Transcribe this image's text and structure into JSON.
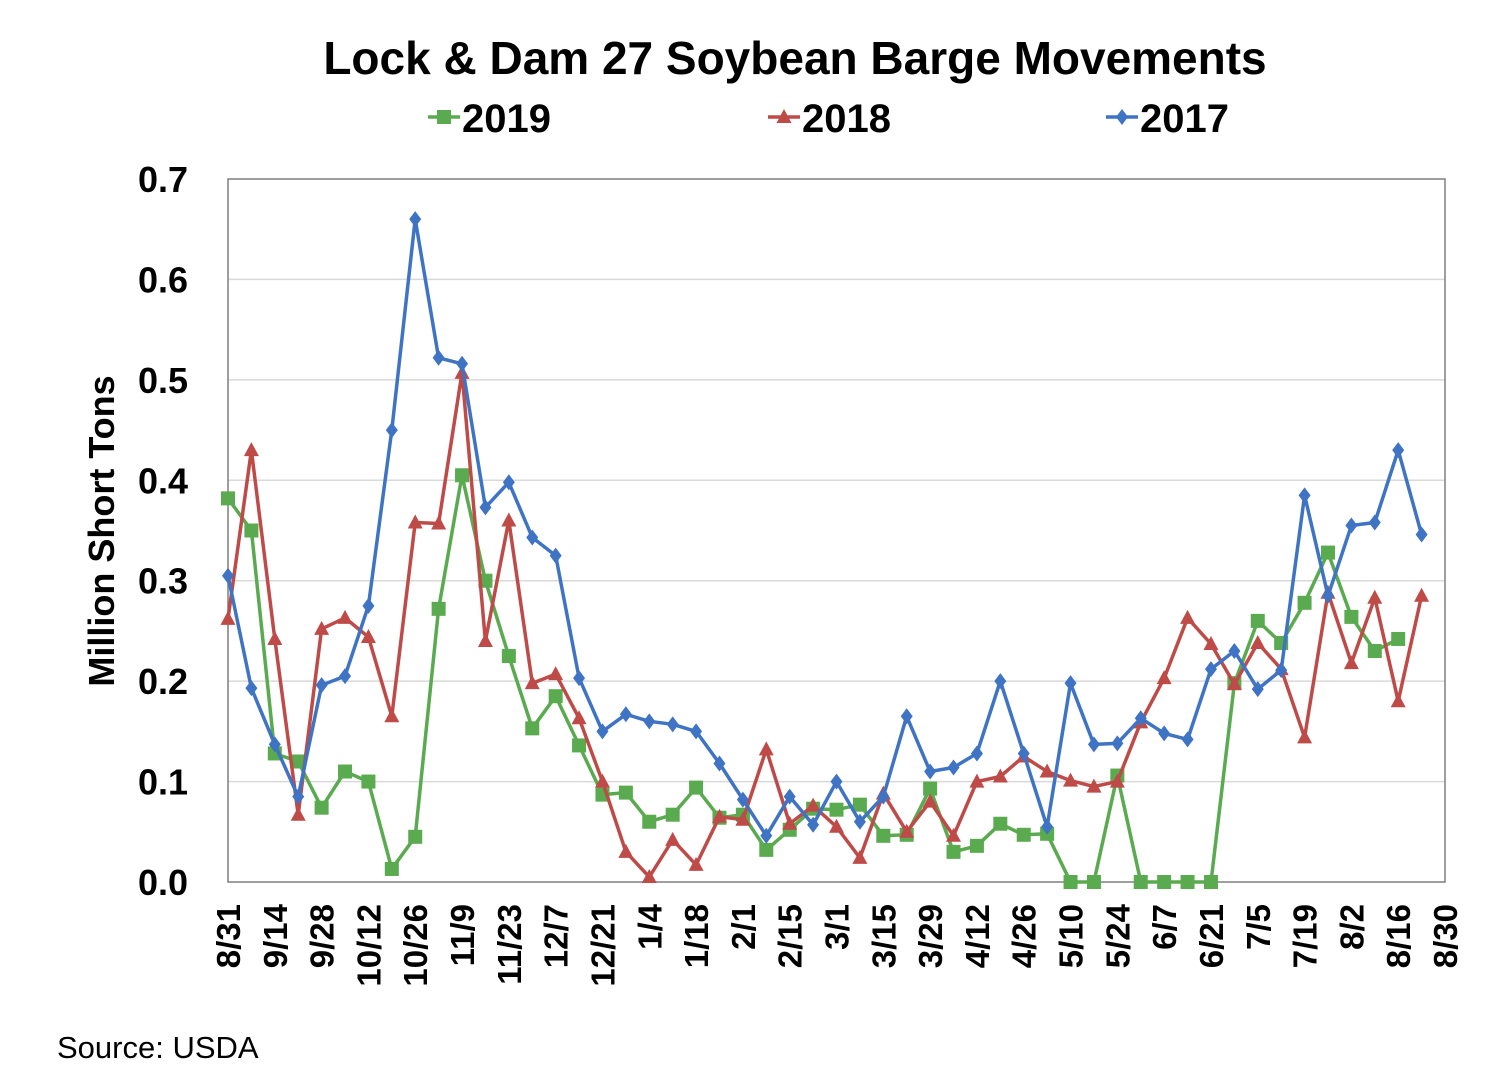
{
  "chart_data": {
    "type": "line",
    "title": "Lock & Dam 27 Soybean Barge Movements",
    "ylabel": "Million Short Tons",
    "xlabel": "",
    "ylim": [
      0,
      0.7
    ],
    "yticks": [
      "0.0",
      "0.1",
      "0.2",
      "0.3",
      "0.4",
      "0.5",
      "0.6",
      "0.7"
    ],
    "x_tick_labels": [
      "8/31",
      "9/14",
      "9/28",
      "10/12",
      "10/26",
      "11/9",
      "11/23",
      "12/7",
      "12/21",
      "1/4",
      "1/18",
      "2/1",
      "2/15",
      "3/1",
      "3/15",
      "3/29",
      "4/12",
      "4/26",
      "5/10",
      "5/24",
      "6/7",
      "6/21",
      "7/5",
      "7/19",
      "8/2",
      "8/16",
      "8/30"
    ],
    "legend_position": "top",
    "grid": "horizontal",
    "source": "Source:  USDA",
    "colors": {
      "2019": "#5aaa4f",
      "2018": "#be4b48",
      "2017": "#3f73c4"
    },
    "series": [
      {
        "name": "2019",
        "marker": "square",
        "values": [
          0.382,
          0.35,
          0.128,
          0.12,
          0.074,
          0.11,
          0.1,
          0.013,
          0.045,
          0.272,
          0.405,
          0.3,
          0.225,
          0.153,
          0.185,
          0.136,
          0.087,
          0.089,
          0.06,
          0.067,
          0.094,
          0.064,
          0.067,
          0.032,
          0.052,
          0.073,
          0.072,
          0.077,
          0.046,
          0.047,
          0.093,
          0.03,
          0.036,
          0.058,
          0.047,
          0.048,
          0.0,
          0.0,
          0.106,
          0.0,
          0.0,
          0.0,
          0.0,
          0.198,
          0.26,
          0.238,
          0.278,
          0.328,
          0.264,
          0.23,
          0.242
        ]
      },
      {
        "name": "2018",
        "marker": "triangle",
        "values": [
          0.262,
          0.43,
          0.242,
          0.067,
          0.252,
          0.263,
          0.244,
          0.165,
          0.358,
          0.357,
          0.507,
          0.24,
          0.36,
          0.198,
          0.207,
          0.163,
          0.1,
          0.03,
          0.005,
          0.042,
          0.017,
          0.065,
          0.062,
          0.132,
          0.058,
          0.076,
          0.055,
          0.024,
          0.088,
          0.05,
          0.08,
          0.046,
          0.1,
          0.105,
          0.125,
          0.11,
          0.101,
          0.095,
          0.1,
          0.159,
          0.203,
          0.263,
          0.237,
          0.197,
          0.238,
          0.212,
          0.144,
          0.288,
          0.218,
          0.283,
          0.18,
          0.285
        ]
      },
      {
        "name": "2017",
        "marker": "diamond",
        "values": [
          0.305,
          0.193,
          0.137,
          0.085,
          0.196,
          0.205,
          0.275,
          0.45,
          0.66,
          0.522,
          0.516,
          0.373,
          0.398,
          0.343,
          0.325,
          0.203,
          0.15,
          0.167,
          0.16,
          0.157,
          0.15,
          0.118,
          0.082,
          0.046,
          0.085,
          0.057,
          0.1,
          0.06,
          0.085,
          0.165,
          0.11,
          0.114,
          0.128,
          0.2,
          0.128,
          0.055,
          0.198,
          0.137,
          0.138,
          0.163,
          0.148,
          0.142,
          0.212,
          0.23,
          0.192,
          0.211,
          0.385,
          0.285,
          0.355,
          0.358,
          0.43,
          0.346
        ]
      }
    ]
  }
}
